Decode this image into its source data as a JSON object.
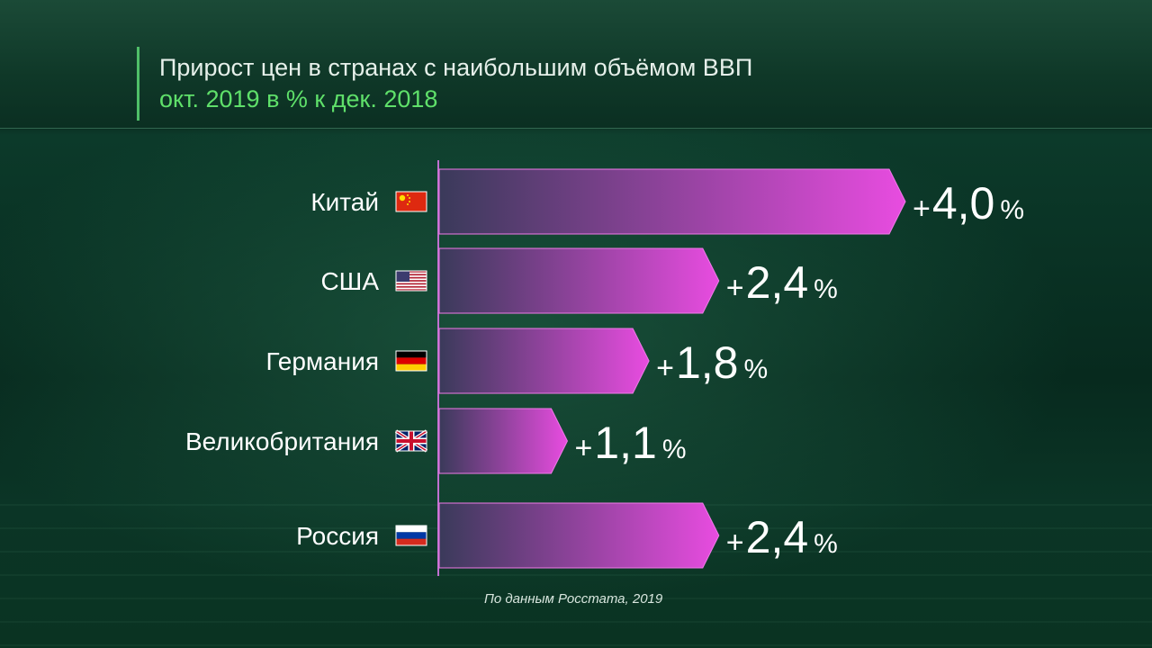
{
  "title": "Прирост цен в странах с наибольшим объёмом ВВП",
  "subtitle": "окт. 2019 в % к дек. 2018",
  "source": "По данным Росстата, 2019",
  "colors": {
    "bar_start": "#3a3a5a",
    "bar_end": "#e84ce0",
    "axis": "#c070d0",
    "label": "#ffffff",
    "title": "#e6f0ea",
    "subtitle": "#5fe06a"
  },
  "chart_data": {
    "type": "bar",
    "orientation": "horizontal",
    "categories": [
      "Китай",
      "США",
      "Германия",
      "Великобритания",
      "Россия"
    ],
    "flags": [
      "china-flag-icon",
      "usa-flag-icon",
      "germany-flag-icon",
      "uk-flag-icon",
      "russia-flag-icon"
    ],
    "values": [
      4.0,
      2.4,
      1.8,
      1.1,
      2.4
    ],
    "value_labels": [
      "+4,0",
      "+2,4",
      "+1,8",
      "+1,1",
      "+2,4"
    ],
    "unit": "%",
    "xlim": [
      0,
      4.0
    ],
    "grid": false,
    "legend": "none"
  }
}
